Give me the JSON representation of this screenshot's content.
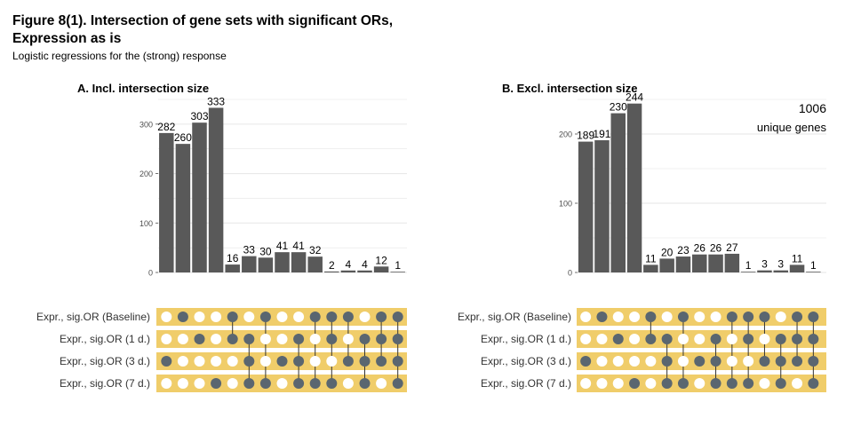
{
  "figure": {
    "title_line1": "Figure 8(1). Intersection of gene sets with significant ORs,",
    "title_line2": "Expression as is",
    "subtitle": "Logistic regressions for the (strong) response"
  },
  "annotation": {
    "count": "1006",
    "label": "unique genes"
  },
  "colors": {
    "bar": "#595959",
    "matrix_band": "#f0cd6a",
    "dot_active": "#5a6670",
    "dot_inactive": "#ffffff",
    "grid": "#e6e6e6"
  },
  "chart_data": [
    {
      "type": "bar",
      "title": "A. Incl. intersection size",
      "set_labels": [
        "Expr., sig.OR (Baseline)",
        "Expr., sig.OR (1 d.)",
        "Expr., sig.OR (3 d.)",
        "Expr., sig.OR (7 d.)"
      ],
      "values": [
        282,
        260,
        303,
        333,
        16,
        33,
        30,
        41,
        41,
        32,
        2,
        4,
        4,
        12,
        1
      ],
      "value_labels": [
        "282",
        "260",
        "303",
        "333",
        "16",
        "33",
        "30",
        "41",
        "41",
        "32",
        "2",
        "4",
        "4",
        "12",
        "1"
      ],
      "yticks": [
        0,
        100,
        200,
        300
      ],
      "ytick_labels": [
        "0",
        "100",
        "200",
        "300"
      ],
      "ylim": [
        0,
        350
      ],
      "membership": [
        [
          0,
          1,
          0,
          0,
          1,
          0,
          1,
          0,
          0,
          1,
          1,
          1,
          0,
          1,
          1
        ],
        [
          0,
          0,
          1,
          0,
          1,
          1,
          0,
          0,
          1,
          0,
          1,
          0,
          1,
          1,
          1
        ],
        [
          1,
          0,
          0,
          0,
          0,
          1,
          0,
          1,
          1,
          0,
          0,
          1,
          1,
          1,
          1
        ],
        [
          0,
          0,
          0,
          1,
          0,
          1,
          1,
          0,
          1,
          1,
          1,
          0,
          1,
          0,
          1
        ]
      ],
      "grid": true
    },
    {
      "type": "bar",
      "title": "B. Excl. intersection size",
      "set_labels": [
        "Expr., sig.OR (Baseline)",
        "Expr., sig.OR (1 d.)",
        "Expr., sig.OR (3 d.)",
        "Expr., sig.OR (7 d.)"
      ],
      "values": [
        189,
        191,
        230,
        244,
        11,
        20,
        23,
        26,
        26,
        27,
        1,
        3,
        3,
        11,
        1
      ],
      "value_labels": [
        "189",
        "191",
        "230",
        "244",
        "11",
        "20",
        "23",
        "26",
        "26",
        "27",
        "1",
        "3",
        "3",
        "11",
        "1"
      ],
      "yticks": [
        0,
        100,
        200
      ],
      "ytick_labels": [
        "0",
        "100",
        "200"
      ],
      "ylim": [
        0,
        250
      ],
      "membership": [
        [
          0,
          1,
          0,
          0,
          1,
          0,
          1,
          0,
          0,
          1,
          1,
          1,
          0,
          1,
          1
        ],
        [
          0,
          0,
          1,
          0,
          1,
          1,
          0,
          0,
          1,
          0,
          1,
          0,
          1,
          1,
          1
        ],
        [
          1,
          0,
          0,
          0,
          0,
          1,
          0,
          1,
          1,
          0,
          0,
          1,
          1,
          1,
          1
        ],
        [
          0,
          0,
          0,
          1,
          0,
          1,
          1,
          0,
          1,
          1,
          1,
          0,
          1,
          0,
          1
        ]
      ],
      "grid": true
    }
  ]
}
